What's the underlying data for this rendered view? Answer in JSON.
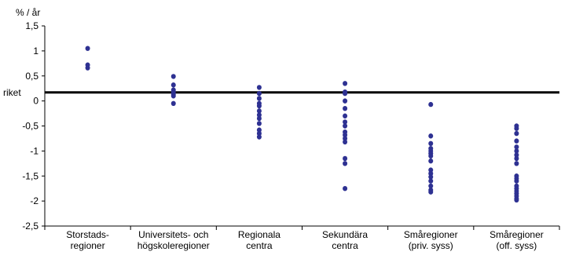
{
  "chart_data": {
    "type": "scatter",
    "y_unit_label": "% / år",
    "reference_line": {
      "label": "riket",
      "value": 0.17
    },
    "ylim": [
      -2.5,
      1.5
    ],
    "y_ticks": [
      {
        "value": 1.5,
        "label": "1,5"
      },
      {
        "value": 1,
        "label": "1"
      },
      {
        "value": 0.5,
        "label": "0,5"
      },
      {
        "value": 0,
        "label": "0"
      },
      {
        "value": -0.5,
        "label": "-0,5"
      },
      {
        "value": -1,
        "label": "-1"
      },
      {
        "value": -1.5,
        "label": "-1,5"
      },
      {
        "value": -2,
        "label": "-2"
      },
      {
        "value": -2.5,
        "label": "-2,5"
      }
    ],
    "grid": false,
    "marker_color": "#2E3192",
    "categories": [
      {
        "line1": "Storstads-",
        "line2": "regioner"
      },
      {
        "line1": "Universitets- och",
        "line2": "högskoleregioner"
      },
      {
        "line1": "Regionala",
        "line2": "centra"
      },
      {
        "line1": "Sekundära",
        "line2": "centra"
      },
      {
        "line1": "Småregioner",
        "line2": "(priv. syss)"
      },
      {
        "line1": "Småregioner",
        "line2": "(off. syss)"
      }
    ],
    "values": [
      [
        1.05,
        0.72,
        0.66
      ],
      [
        0.49,
        0.32,
        0.22,
        0.17,
        0.13,
        0.1,
        -0.05
      ],
      [
        0.27,
        0.15,
        0.05,
        -0.05,
        -0.1,
        -0.2,
        -0.28,
        -0.35,
        -0.45,
        -0.58,
        -0.65,
        -0.72
      ],
      [
        0.35,
        0.18,
        0.15,
        0.0,
        -0.15,
        -0.3,
        -0.42,
        -0.5,
        -0.62,
        -0.68,
        -0.75,
        -0.82,
        -1.15,
        -1.25,
        -1.75
      ],
      [
        -0.07,
        -0.7,
        -0.85,
        -0.95,
        -1.0,
        -1.05,
        -1.1,
        -1.2,
        -1.38,
        -1.45,
        -1.52,
        -1.6,
        -1.7,
        -1.78,
        -1.82
      ],
      [
        -0.5,
        -0.55,
        -0.65,
        -0.8,
        -0.92,
        -1.0,
        -1.08,
        -1.15,
        -1.25,
        -1.5,
        -1.55,
        -1.6,
        -1.7,
        -1.75,
        -1.8,
        -1.85,
        -1.9,
        -1.95,
        -1.98
      ]
    ]
  }
}
